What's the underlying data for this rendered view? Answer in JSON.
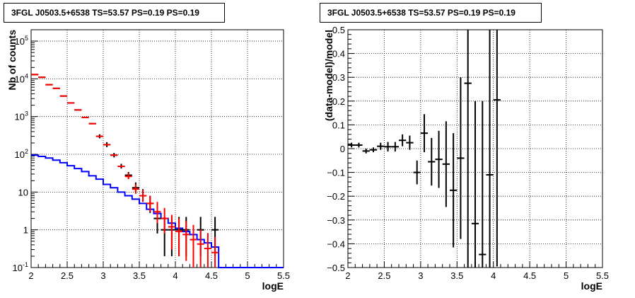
{
  "chart_data": [
    {
      "type": "line",
      "title": "3FGL J0503.5+6538 TS=53.57 PS=0.19 PS=0.19",
      "xlabel": "logE",
      "ylabel": "Nb of counts",
      "xlim": [
        2,
        5.5
      ],
      "ylim": [
        0.1,
        200000
      ],
      "yscale": "log",
      "grid": true,
      "x_ticks": [
        "2",
        "2.5",
        "3",
        "3.5",
        "4",
        "4.5",
        "5",
        "5.5"
      ],
      "y_ticks": [
        {
          "base": "10",
          "exp": "-1",
          "v": 0.1
        },
        {
          "base": "1",
          "exp": "",
          "v": 1
        },
        {
          "base": "10",
          "exp": "",
          "v": 10
        },
        {
          "base": "10",
          "exp": "2",
          "v": 100
        },
        {
          "base": "10",
          "exp": "3",
          "v": 1000
        },
        {
          "base": "10",
          "exp": "4",
          "v": 10000
        },
        {
          "base": "10",
          "exp": "5",
          "v": 100000
        }
      ],
      "bin_width": 0.1,
      "series": [
        {
          "color": "#0000ff",
          "kind": "histogram",
          "x_low": [
            2.0,
            2.1,
            2.2,
            2.3,
            2.4,
            2.5,
            2.6,
            2.7,
            2.8,
            2.9,
            3.0,
            3.1,
            3.2,
            3.3,
            3.4,
            3.5,
            3.6,
            3.7,
            3.8,
            3.9,
            4.0,
            4.1,
            4.2,
            4.3,
            4.4,
            4.5,
            4.6,
            4.7,
            4.8,
            4.9,
            5.0,
            5.1,
            5.2,
            5.3,
            5.4
          ],
          "values": [
            95,
            88,
            80,
            70,
            60,
            50,
            42,
            35,
            27,
            22,
            16,
            13,
            10,
            8,
            6.5,
            5,
            3.5,
            2.7,
            2.0,
            1.5,
            1.1,
            0.9,
            0.75,
            0.55,
            0.45,
            0.35,
            0.1,
            0.1,
            0.1,
            0.1,
            0.1,
            0.1,
            0.1,
            0.1,
            0.1
          ]
        },
        {
          "color": "#000000",
          "kind": "errorbar",
          "x": [
            2.05,
            2.15,
            2.25,
            2.35,
            2.45,
            2.55,
            2.65,
            2.75,
            2.85,
            2.95,
            3.05,
            3.15,
            3.25,
            3.35,
            3.45,
            3.55,
            3.65,
            3.75,
            3.85,
            3.95,
            4.05,
            4.15,
            4.35,
            4.55
          ],
          "values": [
            13000,
            11000,
            7000,
            5600,
            3500,
            2300,
            1500,
            950,
            650,
            300,
            180,
            95,
            48,
            28,
            13,
            8,
            5,
            2,
            1,
            1,
            1,
            1,
            1,
            1
          ],
          "err_low": [
            0,
            0,
            0,
            0,
            0,
            0,
            0,
            0,
            0,
            35,
            25,
            12,
            6,
            5,
            3,
            2.5,
            2.2,
            1.2,
            0.8,
            0.8,
            0.8,
            0.8,
            0.8,
            0.8
          ],
          "err_high": [
            0,
            0,
            0,
            0,
            0,
            0,
            0,
            0,
            0,
            40,
            30,
            14,
            8,
            6,
            5,
            4,
            3,
            1.8,
            1.2,
            1.2,
            1.2,
            1.2,
            1.2,
            1.2
          ]
        },
        {
          "color": "#ff0000",
          "kind": "errorbar",
          "x": [
            2.05,
            2.15,
            2.25,
            2.35,
            2.45,
            2.55,
            2.65,
            2.75,
            2.85,
            2.95,
            3.05,
            3.15,
            3.25,
            3.35,
            3.45,
            3.55,
            3.65,
            3.75,
            3.85,
            3.95,
            4.05,
            4.15,
            4.25,
            4.35,
            4.45,
            4.55
          ],
          "values": [
            13000,
            11000,
            7000,
            5600,
            3500,
            2300,
            1500,
            950,
            650,
            300,
            180,
            95,
            48,
            26,
            12,
            8,
            5,
            3,
            2,
            1.2,
            0.9,
            0.75,
            0.55,
            0.42,
            0.32,
            0.25
          ],
          "err_low": [
            0,
            0,
            0,
            0,
            0,
            0,
            0,
            0,
            0,
            0,
            0,
            0,
            0,
            4,
            3,
            2.5,
            2,
            1.5,
            1.2,
            0.9,
            0.7,
            0.6,
            0.45,
            0.35,
            0.26,
            0.2
          ],
          "err_high": [
            0,
            0,
            0,
            0,
            0,
            0,
            0,
            0,
            0,
            0,
            0,
            0,
            0,
            6,
            4,
            3.5,
            3,
            2.5,
            1.8,
            1.3,
            1.1,
            0.95,
            0.8,
            0.6,
            0.5,
            0.4
          ]
        }
      ]
    },
    {
      "type": "scatter",
      "title": "3FGL J0503.5+6538 TS=53.57 PS=0.19 PS=0.19",
      "xlabel": "logE",
      "ylabel": "(data-model)/model",
      "xlim": [
        2,
        5.5
      ],
      "ylim": [
        -0.5,
        0.5
      ],
      "grid": true,
      "x_ticks": [
        "2",
        "2.5",
        "3",
        "3.5",
        "4",
        "4.5",
        "5",
        "5.5"
      ],
      "y_ticks": [
        "−0.5",
        "−0.4",
        "−0.3",
        "−0.2",
        "−0.1",
        "0",
        "0.1",
        "0.2",
        "0.3",
        "0.4",
        "0.5"
      ],
      "bin_width": 0.1,
      "series": [
        {
          "color": "#000000",
          "kind": "errorbar",
          "x": [
            2.05,
            2.15,
            2.25,
            2.35,
            2.45,
            2.55,
            2.65,
            2.75,
            2.85,
            2.95,
            3.05,
            3.15,
            3.25,
            3.35,
            3.45,
            3.55,
            3.65,
            3.75,
            3.85,
            3.95,
            4.05
          ],
          "values": [
            0.015,
            0.015,
            -0.01,
            -0.005,
            0.01,
            0.008,
            0.008,
            0.035,
            0.025,
            -0.1,
            0.065,
            -0.055,
            -0.045,
            -0.065,
            -0.175,
            -0.04,
            0.275,
            -0.315,
            -0.445,
            -0.11,
            0.205
          ],
          "err_low": [
            0.01,
            0.01,
            0.01,
            0.01,
            0.015,
            0.02,
            0.02,
            0.025,
            0.03,
            0.05,
            0.08,
            0.1,
            0.12,
            0.18,
            0.24,
            0.34,
            0.85,
            0.45,
            0.06,
            0.4,
            0.7
          ],
          "err_high": [
            0.01,
            0.01,
            0.01,
            0.01,
            0.015,
            0.02,
            0.02,
            0.025,
            0.03,
            0.05,
            0.08,
            0.1,
            0.12,
            0.18,
            0.24,
            0.34,
            0.225,
            0.515,
            0.645,
            0.61,
            0.295
          ]
        }
      ]
    }
  ]
}
